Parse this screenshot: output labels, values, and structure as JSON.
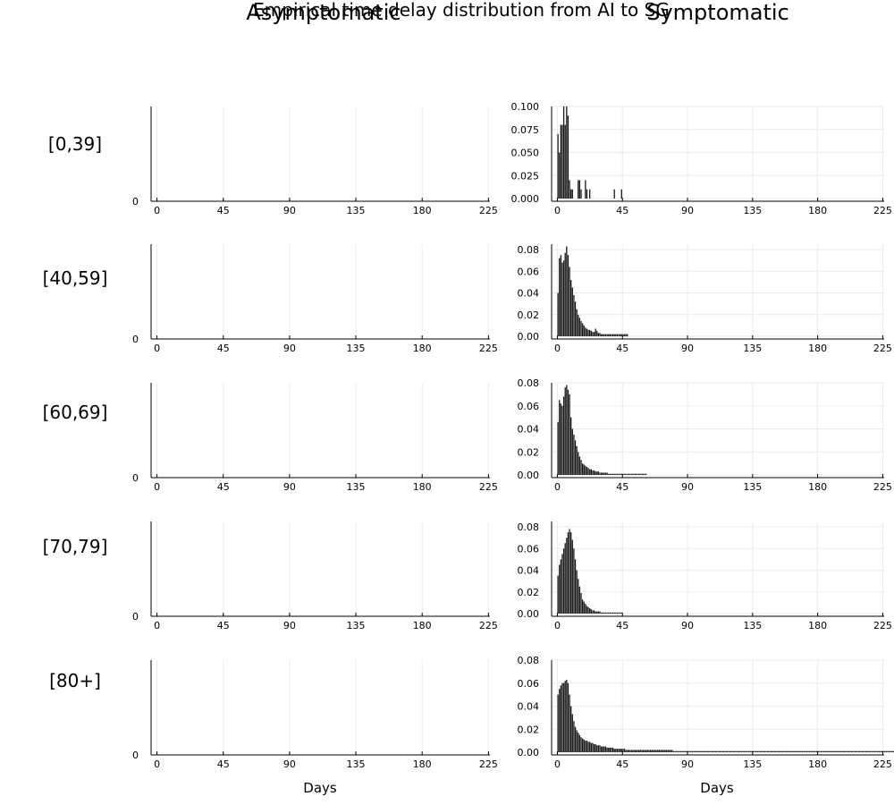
{
  "title": "Empirical time delay distribution from AI to SG",
  "columns": [
    "Asymptomatic",
    "Symptomatic"
  ],
  "rows": [
    "[0,39]",
    "[40,59]",
    "[60,69]",
    "[70,79]",
    "[80+]"
  ],
  "xlabel": "Days",
  "colors": {
    "bar": "#1a1a1a",
    "grid": "#ebebeb",
    "axis": "#000000"
  },
  "chart_data": {
    "type": "bar",
    "grid": true,
    "legend": "none",
    "xlim": [
      -4,
      226
    ],
    "xticks": [
      0,
      45,
      90,
      135,
      180,
      225
    ],
    "asymptomatic": {
      "ylim": [
        0,
        1
      ],
      "yticks": [
        0
      ],
      "values": []
    },
    "symptomatic": [
      {
        "group": "[0,39]",
        "ylim": [
          0,
          0.1
        ],
        "yticks": [
          0.0,
          0.025,
          0.05,
          0.075,
          0.1
        ],
        "ytick_labels": [
          "0.000",
          "0.025",
          "0.050",
          "0.075",
          "0.100"
        ],
        "values": [
          0.07,
          0.05,
          0.08,
          0.08,
          0.1,
          0.08,
          0.1,
          0.09,
          0.02,
          0.01,
          0.01,
          0.0,
          0.0,
          0.0,
          0.02,
          0.02,
          0.01,
          0.0,
          0.0,
          0.02,
          0.01,
          0.0,
          0.01,
          0.0,
          0.0,
          0.0,
          0.0,
          0.0,
          0.0,
          0.0,
          0.0,
          0.0,
          0.0,
          0.0,
          0.0,
          0.0,
          0.0,
          0.0,
          0.0,
          0.01,
          0.0,
          0.0,
          0.0,
          0.0,
          0.01
        ]
      },
      {
        "group": "[40,59]",
        "ylim": [
          0,
          0.085
        ],
        "yticks": [
          0.0,
          0.02,
          0.04,
          0.06,
          0.08
        ],
        "ytick_labels": [
          "0.00",
          "0.02",
          "0.04",
          "0.06",
          "0.08"
        ],
        "values": [
          0.04,
          0.072,
          0.075,
          0.068,
          0.07,
          0.077,
          0.083,
          0.075,
          0.064,
          0.052,
          0.045,
          0.038,
          0.032,
          0.025,
          0.02,
          0.017,
          0.014,
          0.012,
          0.01,
          0.008,
          0.007,
          0.006,
          0.006,
          0.005,
          0.004,
          0.004,
          0.007,
          0.005,
          0.003,
          0.003,
          0.002,
          0.002,
          0.002,
          0.002,
          0.002,
          0.002,
          0.002,
          0.002,
          0.002,
          0.002,
          0.002,
          0.002,
          0.002,
          0.002,
          0.002,
          0.002,
          0.002,
          0.002,
          0.002
        ]
      },
      {
        "group": "[60,69]",
        "ylim": [
          0,
          0.08
        ],
        "yticks": [
          0.0,
          0.02,
          0.04,
          0.06,
          0.08
        ],
        "ytick_labels": [
          "0.00",
          "0.02",
          "0.04",
          "0.06",
          "0.08"
        ],
        "values": [
          0.046,
          0.065,
          0.062,
          0.06,
          0.068,
          0.076,
          0.078,
          0.074,
          0.07,
          0.05,
          0.04,
          0.035,
          0.03,
          0.025,
          0.02,
          0.016,
          0.013,
          0.01,
          0.009,
          0.008,
          0.007,
          0.006,
          0.005,
          0.005,
          0.004,
          0.004,
          0.003,
          0.003,
          0.003,
          0.002,
          0.002,
          0.002,
          0.002,
          0.002,
          0.002,
          0.001,
          0.001,
          0.001,
          0.001,
          0.001,
          0.001,
          0.001,
          0.001,
          0.001,
          0.001,
          0.001,
          0.001,
          0.001,
          0.001,
          0.001,
          0.001,
          0.001,
          0.001,
          0.001,
          0.001,
          0.001,
          0.001,
          0.001,
          0.001,
          0.001,
          0.001,
          0.001
        ]
      },
      {
        "group": "[70,79]",
        "ylim": [
          0,
          0.085
        ],
        "yticks": [
          0.0,
          0.02,
          0.04,
          0.06,
          0.08
        ],
        "ytick_labels": [
          "0.00",
          "0.02",
          "0.04",
          "0.06",
          "0.08"
        ],
        "values": [
          0.035,
          0.045,
          0.05,
          0.055,
          0.06,
          0.065,
          0.07,
          0.075,
          0.078,
          0.075,
          0.068,
          0.06,
          0.05,
          0.04,
          0.032,
          0.025,
          0.019,
          0.013,
          0.011,
          0.009,
          0.007,
          0.006,
          0.005,
          0.004,
          0.003,
          0.003,
          0.002,
          0.002,
          0.002,
          0.002,
          0.001,
          0.001,
          0.001,
          0.001,
          0.001,
          0.001,
          0.001,
          0.001,
          0.001,
          0.001,
          0.001,
          0.001,
          0.001,
          0.001,
          0.001
        ]
      },
      {
        "group": "[80+]",
        "ylim": [
          0,
          0.08
        ],
        "yticks": [
          0.0,
          0.02,
          0.04,
          0.06,
          0.08
        ],
        "ytick_labels": [
          "0.00",
          "0.02",
          "0.04",
          "0.06",
          "0.08"
        ],
        "values": [
          0.05,
          0.055,
          0.058,
          0.06,
          0.06,
          0.062,
          0.063,
          0.06,
          0.05,
          0.04,
          0.033,
          0.027,
          0.022,
          0.019,
          0.017,
          0.015,
          0.013,
          0.012,
          0.011,
          0.01,
          0.01,
          0.009,
          0.009,
          0.008,
          0.008,
          0.007,
          0.007,
          0.006,
          0.006,
          0.006,
          0.005,
          0.005,
          0.005,
          0.005,
          0.004,
          0.004,
          0.004,
          0.004,
          0.004,
          0.003,
          0.003,
          0.003,
          0.003,
          0.003,
          0.003,
          0.003,
          0.003,
          0.002,
          0.002,
          0.002,
          0.002,
          0.002,
          0.002,
          0.002,
          0.002,
          0.002,
          0.002,
          0.002,
          0.002,
          0.002,
          0.002,
          0.002,
          0.002,
          0.002,
          0.002,
          0.002,
          0.002,
          0.002,
          0.002,
          0.002,
          0.002,
          0.002,
          0.002,
          0.002,
          0.002,
          0.002,
          0.002,
          0.002,
          0.002,
          0.002,
          0.001,
          0.001,
          0.001,
          0.001,
          0.001,
          0.001,
          0.001,
          0.001,
          0.001,
          0.001,
          0.001,
          0.001,
          0.001,
          0.001,
          0.001,
          0.001,
          0.001,
          0.001,
          0.001,
          0.001,
          0.001,
          0.001,
          0.001,
          0.001,
          0.001,
          0.001,
          0.001,
          0.001,
          0.001,
          0.001,
          0.001,
          0.001,
          0.001,
          0.001,
          0.001,
          0.001,
          0.001,
          0.001,
          0.001,
          0.001,
          0.001,
          0.001,
          0.001,
          0.001,
          0.001,
          0.001,
          0.001,
          0.001,
          0.001,
          0.001,
          0.001,
          0.001,
          0.001,
          0.001,
          0.001,
          0.001,
          0.001,
          0.001,
          0.001,
          0.001,
          0.001,
          0.001,
          0.001,
          0.001,
          0.001,
          0.001,
          0.001,
          0.001,
          0.001,
          0.001,
          0.001,
          0.001,
          0.001,
          0.001,
          0.001,
          0.001,
          0.001,
          0.001,
          0.001,
          0.001,
          0.001,
          0.001,
          0.001,
          0.001,
          0.001,
          0.001,
          0.001,
          0.001,
          0.001,
          0.001,
          0.001,
          0.001,
          0.001,
          0.001,
          0.001,
          0.001,
          0.001,
          0.001,
          0.001,
          0.001,
          0.001,
          0.001,
          0.001,
          0.001,
          0.001,
          0.001,
          0.001,
          0.001,
          0.001,
          0.001,
          0.001,
          0.001,
          0.001,
          0.001,
          0.001,
          0.001,
          0.001,
          0.001,
          0.001,
          0.001,
          0.001,
          0.001,
          0.001,
          0.001,
          0.001,
          0.001,
          0.001,
          0.001,
          0.001,
          0.001,
          0.001,
          0.001,
          0.001,
          0.001,
          0.001,
          0.001,
          0.001,
          0.001,
          0.001,
          0.001,
          0.001,
          0.001,
          0.001,
          0.001,
          0.001,
          0.001,
          0.001,
          0.001,
          0.001,
          0.001,
          0.001,
          0.001,
          0.001
        ]
      }
    ]
  }
}
